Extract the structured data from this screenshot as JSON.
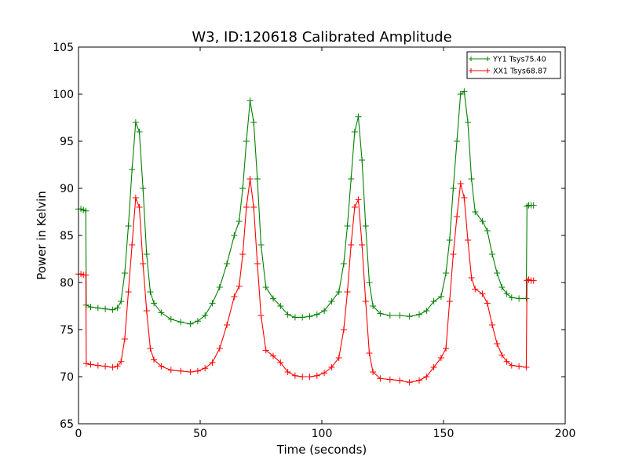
{
  "chart_data": {
    "type": "line",
    "title": "W3, ID:120618 Calibrated Amplitude",
    "xlabel": "Time (seconds)",
    "ylabel": "Power in Kelvin",
    "xlim": [
      0,
      200
    ],
    "ylim": [
      65,
      105
    ],
    "xticks": [
      0,
      50,
      100,
      150,
      200
    ],
    "yticks": [
      65,
      70,
      75,
      80,
      85,
      90,
      95,
      100,
      105
    ],
    "grid": false,
    "legend_position": "top-right",
    "marker": "plus",
    "series": [
      {
        "name": "YY1 Tsys75.40",
        "color": "#008000",
        "points": [
          [
            0,
            87.8
          ],
          [
            1,
            87.8
          ],
          [
            2,
            87.7
          ],
          [
            3,
            87.6
          ],
          [
            3.2,
            77.6
          ],
          [
            5,
            77.4
          ],
          [
            8,
            77.3
          ],
          [
            11,
            77.2
          ],
          [
            14,
            77.1
          ],
          [
            16,
            77.3
          ],
          [
            17.5,
            78
          ],
          [
            19,
            81
          ],
          [
            20.5,
            86
          ],
          [
            22,
            92
          ],
          [
            23.5,
            97
          ],
          [
            25,
            96
          ],
          [
            26.5,
            90
          ],
          [
            28,
            83
          ],
          [
            29.5,
            79
          ],
          [
            31,
            77.8
          ],
          [
            34,
            76.8
          ],
          [
            38,
            76.1
          ],
          [
            42,
            75.8
          ],
          [
            46,
            75.6
          ],
          [
            49,
            75.9
          ],
          [
            52,
            76.5
          ],
          [
            55,
            77.8
          ],
          [
            58,
            79.5
          ],
          [
            61,
            82
          ],
          [
            64,
            85
          ],
          [
            66,
            86.5
          ],
          [
            67.5,
            90
          ],
          [
            69,
            95
          ],
          [
            70.5,
            99.3
          ],
          [
            72,
            97
          ],
          [
            73.5,
            91
          ],
          [
            75,
            84
          ],
          [
            77,
            79.5
          ],
          [
            80,
            78.3
          ],
          [
            83,
            77.5
          ],
          [
            86,
            76.6
          ],
          [
            89,
            76.3
          ],
          [
            92,
            76.3
          ],
          [
            95,
            76.4
          ],
          [
            98,
            76.6
          ],
          [
            101,
            77
          ],
          [
            104,
            78
          ],
          [
            107,
            79
          ],
          [
            109,
            82
          ],
          [
            110.5,
            86
          ],
          [
            112,
            91
          ],
          [
            113.5,
            96
          ],
          [
            115,
            97.6
          ],
          [
            116.5,
            93
          ],
          [
            118,
            86
          ],
          [
            119.5,
            80
          ],
          [
            121,
            77.5
          ],
          [
            124,
            76.7
          ],
          [
            128,
            76.5
          ],
          [
            132,
            76.5
          ],
          [
            136,
            76.4
          ],
          [
            140,
            76.6
          ],
          [
            143,
            77
          ],
          [
            146,
            78
          ],
          [
            149,
            78.5
          ],
          [
            151,
            81
          ],
          [
            152.5,
            84.5
          ],
          [
            154,
            90
          ],
          [
            155.5,
            95
          ],
          [
            157,
            100
          ],
          [
            158.5,
            100.3
          ],
          [
            160,
            97
          ],
          [
            161.5,
            91
          ],
          [
            163,
            87.5
          ],
          [
            166,
            86.5
          ],
          [
            168,
            85.5
          ],
          [
            170,
            83
          ],
          [
            172,
            81
          ],
          [
            174,
            79.5
          ],
          [
            176,
            78.8
          ],
          [
            178,
            78.4
          ],
          [
            181,
            78.3
          ],
          [
            184,
            78.3
          ],
          [
            184.3,
            88.1
          ],
          [
            185,
            88.2
          ],
          [
            186,
            88.2
          ],
          [
            187,
            88.2
          ]
        ]
      },
      {
        "name": "XX1 Tsys68.87",
        "color": "#ff0000",
        "points": [
          [
            0,
            80.9
          ],
          [
            1,
            80.9
          ],
          [
            2,
            80.8
          ],
          [
            3,
            80.8
          ],
          [
            3.2,
            71.4
          ],
          [
            5,
            71.3
          ],
          [
            8,
            71.2
          ],
          [
            11,
            71.1
          ],
          [
            14,
            71.0
          ],
          [
            16,
            71.1
          ],
          [
            17.5,
            71.6
          ],
          [
            19,
            74
          ],
          [
            20.5,
            79
          ],
          [
            22,
            84
          ],
          [
            23.5,
            89
          ],
          [
            25,
            88
          ],
          [
            26.5,
            82
          ],
          [
            28,
            77
          ],
          [
            29.5,
            73
          ],
          [
            31,
            71.8
          ],
          [
            34,
            71.1
          ],
          [
            38,
            70.7
          ],
          [
            42,
            70.6
          ],
          [
            46,
            70.5
          ],
          [
            49,
            70.6
          ],
          [
            52,
            70.9
          ],
          [
            55,
            71.5
          ],
          [
            58,
            73
          ],
          [
            61,
            75.5
          ],
          [
            64,
            78.5
          ],
          [
            66,
            79.6
          ],
          [
            67.5,
            83
          ],
          [
            69,
            88
          ],
          [
            70.5,
            91
          ],
          [
            72,
            88
          ],
          [
            73.5,
            82
          ],
          [
            75,
            76.5
          ],
          [
            77,
            72.8
          ],
          [
            80,
            72.2
          ],
          [
            83,
            71.5
          ],
          [
            86,
            70.5
          ],
          [
            89,
            70.1
          ],
          [
            92,
            70
          ],
          [
            95,
            70
          ],
          [
            98,
            70.1
          ],
          [
            101,
            70.4
          ],
          [
            104,
            71
          ],
          [
            107,
            72
          ],
          [
            109,
            75
          ],
          [
            110.5,
            79
          ],
          [
            112,
            84
          ],
          [
            113.5,
            88
          ],
          [
            115,
            88.8
          ],
          [
            116.5,
            84
          ],
          [
            118,
            78
          ],
          [
            119.5,
            72.5
          ],
          [
            121,
            70.5
          ],
          [
            124,
            69.8
          ],
          [
            128,
            69.7
          ],
          [
            132,
            69.6
          ],
          [
            136,
            69.4
          ],
          [
            140,
            69.6
          ],
          [
            143,
            70
          ],
          [
            146,
            71
          ],
          [
            149,
            72
          ],
          [
            151,
            73
          ],
          [
            152.5,
            78
          ],
          [
            154,
            83
          ],
          [
            155.5,
            87
          ],
          [
            157,
            90.5
          ],
          [
            158.5,
            89
          ],
          [
            160,
            84.5
          ],
          [
            161.5,
            80.5
          ],
          [
            163,
            79.3
          ],
          [
            166,
            78.8
          ],
          [
            168,
            77.8
          ],
          [
            170,
            75.5
          ],
          [
            172,
            73.5
          ],
          [
            174,
            72.3
          ],
          [
            176,
            71.6
          ],
          [
            178,
            71.2
          ],
          [
            181,
            71.1
          ],
          [
            184,
            71.0
          ],
          [
            184.3,
            80.2
          ],
          [
            185,
            80.3
          ],
          [
            186,
            80.2
          ],
          [
            187,
            80.2
          ]
        ]
      }
    ]
  }
}
